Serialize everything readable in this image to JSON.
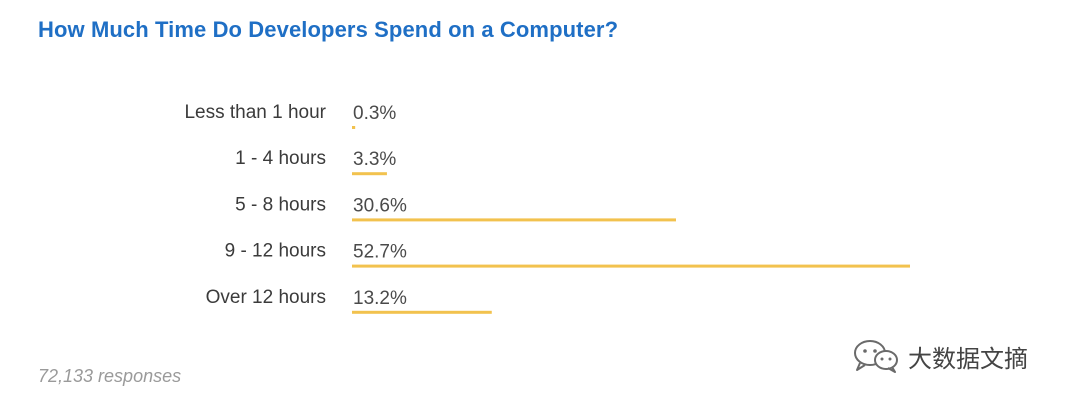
{
  "title": "How Much Time Do Developers Spend on a Computer?",
  "footer": "72,133 responses",
  "watermark": "大数据文摘",
  "bar_color": "#f2c24e",
  "chart_data": {
    "type": "bar",
    "orientation": "horizontal",
    "categories": [
      "Less than 1 hour",
      "1 - 4 hours",
      "5 - 8 hours",
      "9 - 12 hours",
      "Over 12 hours"
    ],
    "values": [
      0.3,
      3.3,
      30.6,
      52.7,
      13.2
    ],
    "value_labels": [
      "0.3%",
      "3.3%",
      "30.6%",
      "52.7%",
      "13.2%"
    ],
    "unit": "%",
    "title": "How Much Time Do Developers Spend on a Computer?",
    "xlabel": "",
    "ylabel": "",
    "grid": false,
    "legend": "none"
  }
}
